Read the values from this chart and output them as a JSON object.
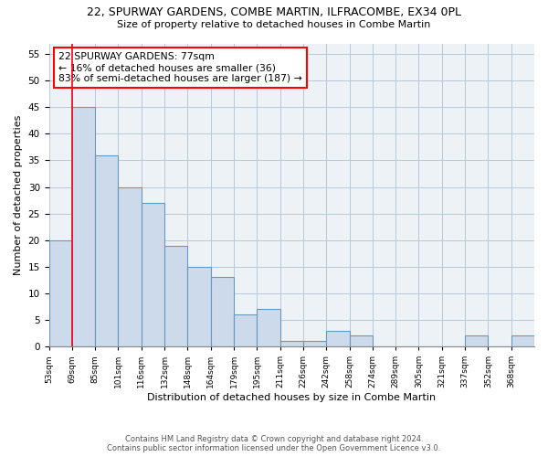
{
  "title": "22, SPURWAY GARDENS, COMBE MARTIN, ILFRACOMBE, EX34 0PL",
  "subtitle": "Size of property relative to detached houses in Combe Martin",
  "xlabel": "Distribution of detached houses by size in Combe Martin",
  "ylabel": "Number of detached properties",
  "bin_labels": [
    "53sqm",
    "69sqm",
    "85sqm",
    "101sqm",
    "116sqm",
    "132sqm",
    "148sqm",
    "164sqm",
    "179sqm",
    "195sqm",
    "211sqm",
    "226sqm",
    "242sqm",
    "258sqm",
    "274sqm",
    "289sqm",
    "305sqm",
    "321sqm",
    "337sqm",
    "352sqm",
    "368sqm"
  ],
  "bar_heights": [
    20,
    45,
    36,
    30,
    27,
    19,
    15,
    13,
    6,
    7,
    1,
    1,
    3,
    2,
    0,
    0,
    0,
    0,
    2,
    0,
    2
  ],
  "bar_color": "#ccdaeb",
  "bar_edge_color": "#6699bb",
  "red_line_x": 1,
  "bin_edges_numeric": [
    0,
    1,
    2,
    3,
    4,
    5,
    6,
    7,
    8,
    9,
    10,
    11,
    12,
    13,
    14,
    15,
    16,
    17,
    18,
    19,
    20,
    21
  ],
  "annotation_text": "22 SPURWAY GARDENS: 77sqm\n← 16% of detached houses are smaller (36)\n83% of semi-detached houses are larger (187) →",
  "annotation_box_color": "white",
  "annotation_box_edge_color": "red",
  "ylim": [
    0,
    57
  ],
  "yticks": [
    0,
    5,
    10,
    15,
    20,
    25,
    30,
    35,
    40,
    45,
    50,
    55
  ],
  "footer_line1": "Contains HM Land Registry data © Crown copyright and database right 2024.",
  "footer_line2": "Contains public sector information licensed under the Open Government Licence v3.0.",
  "bg_color": "#edf2f7",
  "grid_color": "#b8c8d8"
}
